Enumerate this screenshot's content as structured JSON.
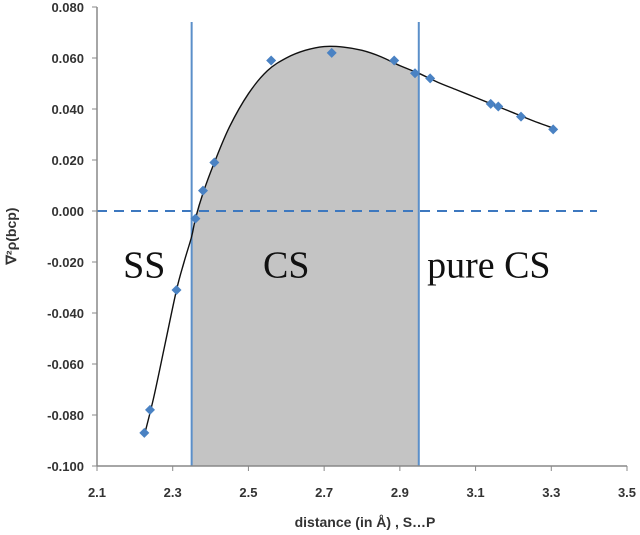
{
  "chart_data": {
    "type": "scatter",
    "xlabel": "distance (in Å) , S…P",
    "ylabel": "∇²ρ(bcp)",
    "xlim": [
      2.1,
      3.5
    ],
    "ylim": [
      -0.1,
      0.08
    ],
    "x_ticks": [
      "2.1",
      "2.3",
      "2.5",
      "2.7",
      "2.9",
      "3.1",
      "3.3",
      "3.5"
    ],
    "y_ticks": [
      "-0.100",
      "-0.080",
      "-0.060",
      "-0.040",
      "-0.020",
      "0.000",
      "0.020",
      "0.040",
      "0.060",
      "0.080"
    ],
    "points": [
      {
        "x": 2.225,
        "y": -0.087
      },
      {
        "x": 2.24,
        "y": -0.078
      },
      {
        "x": 2.31,
        "y": -0.031
      },
      {
        "x": 2.36,
        "y": -0.003
      },
      {
        "x": 2.38,
        "y": 0.008
      },
      {
        "x": 2.41,
        "y": 0.019
      },
      {
        "x": 2.56,
        "y": 0.059
      },
      {
        "x": 2.72,
        "y": 0.062
      },
      {
        "x": 2.885,
        "y": 0.059
      },
      {
        "x": 2.94,
        "y": 0.054
      },
      {
        "x": 2.98,
        "y": 0.052
      },
      {
        "x": 3.14,
        "y": 0.042
      },
      {
        "x": 3.16,
        "y": 0.041
      },
      {
        "x": 3.22,
        "y": 0.037
      },
      {
        "x": 3.305,
        "y": 0.032
      }
    ],
    "fit_curve": [
      [
        2.225,
        -0.088
      ],
      [
        2.25,
        -0.073
      ],
      [
        2.28,
        -0.052
      ],
      [
        2.31,
        -0.031
      ],
      [
        2.33,
        -0.02
      ],
      [
        2.35,
        -0.01
      ],
      [
        2.36,
        -0.003
      ],
      [
        2.38,
        0.007
      ],
      [
        2.41,
        0.019
      ],
      [
        2.45,
        0.033
      ],
      [
        2.5,
        0.046
      ],
      [
        2.55,
        0.055
      ],
      [
        2.6,
        0.06
      ],
      [
        2.65,
        0.063
      ],
      [
        2.7,
        0.0645
      ],
      [
        2.75,
        0.0643
      ],
      [
        2.8,
        0.063
      ],
      [
        2.85,
        0.0605
      ],
      [
        2.9,
        0.057
      ],
      [
        2.95,
        0.054
      ],
      [
        3.0,
        0.0505
      ],
      [
        3.05,
        0.0475
      ],
      [
        3.1,
        0.0445
      ],
      [
        3.15,
        0.0415
      ],
      [
        3.2,
        0.0385
      ],
      [
        3.25,
        0.0355
      ],
      [
        3.305,
        0.0325
      ]
    ],
    "zero_line_y": 0.0,
    "boundaries": [
      2.35,
      2.95
    ],
    "shaded_range": [
      2.35,
      2.95
    ],
    "regions": [
      {
        "label": "SS",
        "x": 2.225,
        "y": -0.026
      },
      {
        "label": "CS",
        "x": 2.6,
        "y": -0.026
      },
      {
        "label": "pure CS",
        "x": 3.135,
        "y": -0.026
      }
    ],
    "colors": {
      "marker": "#4a82c3",
      "fit_line": "#111111",
      "boundary": "#5b8fc9",
      "zero_line": "#3d78bf",
      "shade": "#c4c4c4",
      "axis": "#888888"
    },
    "grid": false,
    "legend": "none"
  }
}
